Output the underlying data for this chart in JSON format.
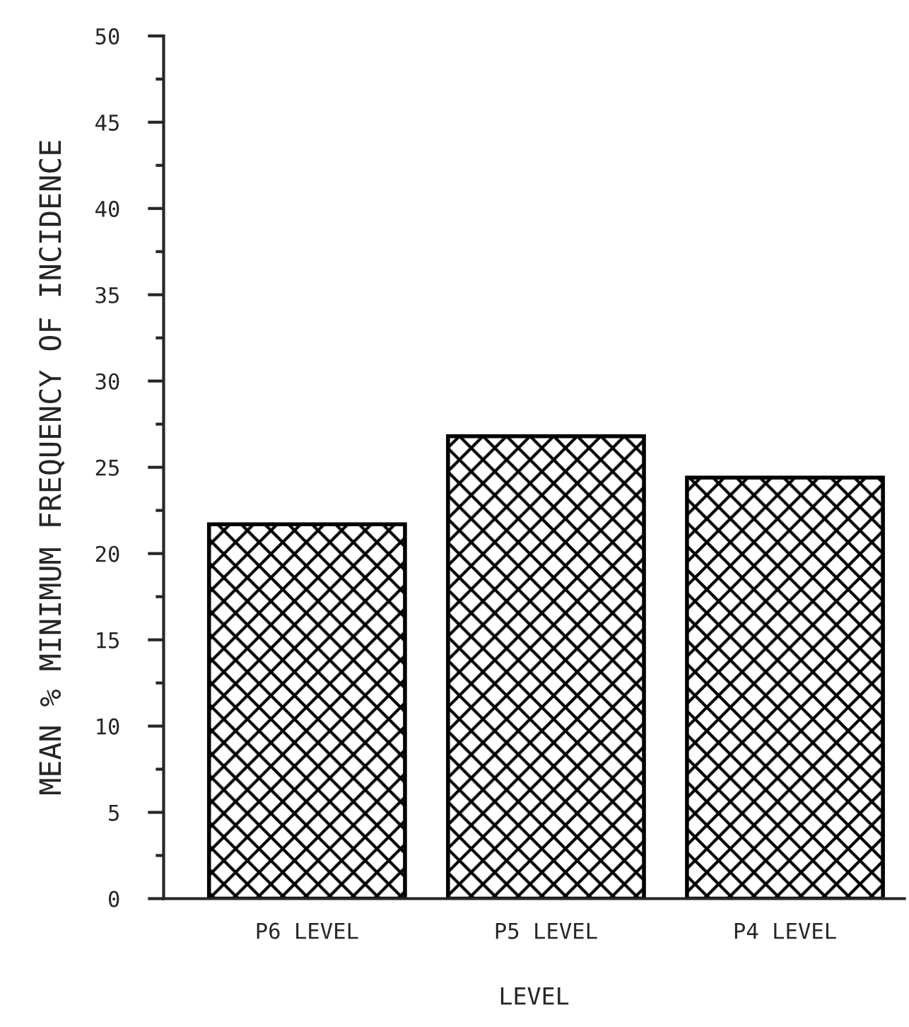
{
  "chart_data": {
    "type": "bar",
    "xlabel": "LEVEL",
    "ylabel": "MEAN % MINIMUM FREQUENCY OF INCIDENCE",
    "categories": [
      "P6 LEVEL",
      "P5 LEVEL",
      "P4 LEVEL"
    ],
    "values": [
      21.7,
      26.8,
      24.4
    ],
    "color": "#000000",
    "ylim": [
      0,
      50
    ],
    "yticks": [
      0,
      {
        "value": 2.5,
        "label": null
      },
      5,
      {
        "value": 7.5,
        "label": null
      },
      10,
      {
        "value": 12.5,
        "label": null
      },
      15,
      {
        "value": 17.5,
        "label": null
      },
      20,
      {
        "value": 22.5,
        "label": null
      },
      25,
      {
        "value": 27.5,
        "label": null
      },
      30,
      {
        "value": 32.5,
        "label": null
      },
      35,
      {
        "value": 37.5,
        "label": null
      },
      40,
      {
        "value": 42.5,
        "label": null
      },
      45,
      {
        "value": 47.5,
        "label": null
      },
      50
    ],
    "grid": false
  }
}
